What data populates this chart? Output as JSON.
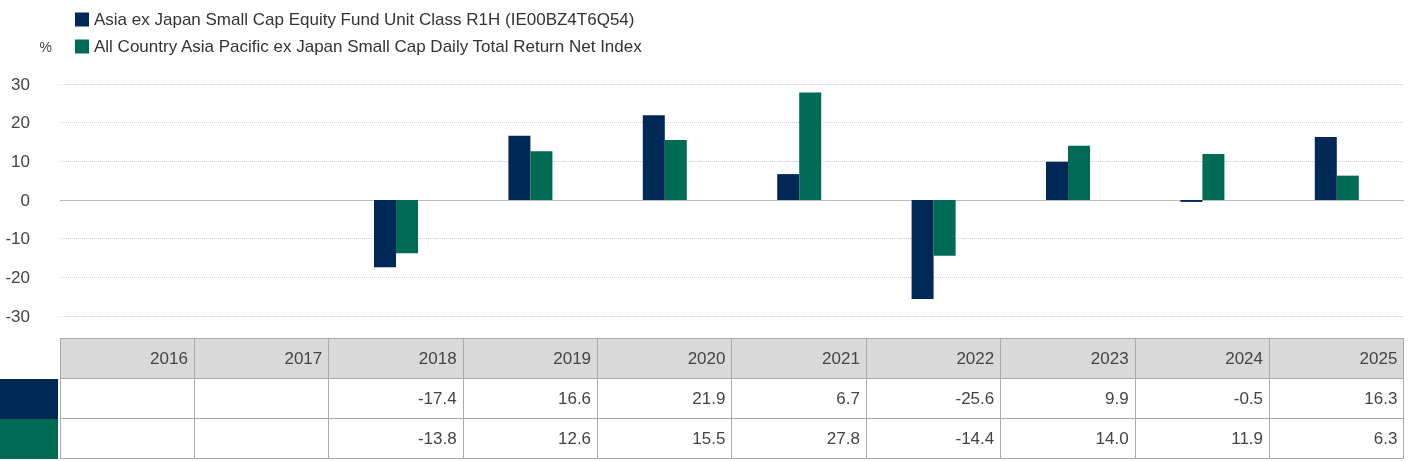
{
  "chart_data": {
    "type": "bar",
    "ylabel": "%",
    "categories": [
      "2016",
      "2017",
      "2018",
      "2019",
      "2020",
      "2021",
      "2022",
      "2023",
      "2024",
      "2025"
    ],
    "series": [
      {
        "name": "Asia ex Japan Small Cap Equity Fund Unit Class R1H (IE00BZ4T6Q54)",
        "color": "#002856",
        "values": [
          null,
          null,
          -17.4,
          16.6,
          21.9,
          6.7,
          -25.6,
          9.9,
          -0.5,
          16.3
        ],
        "value_labels": [
          null,
          null,
          "-17.4",
          "16.6",
          "21.9",
          "6.7",
          "-25.6",
          "9.9",
          "-0.5",
          "16.3"
        ]
      },
      {
        "name": "All Country Asia Pacific ex Japan Small Cap Daily Total Return Net Index",
        "color": "#006b54",
        "values": [
          null,
          null,
          -13.8,
          12.6,
          15.5,
          27.8,
          -14.4,
          14.0,
          11.9,
          6.3
        ],
        "value_labels": [
          null,
          null,
          "-13.8",
          "12.6",
          "15.5",
          "27.8",
          "-14.4",
          "14.0",
          "11.9",
          "6.3"
        ]
      }
    ],
    "ylim": [
      -30,
      30
    ],
    "yticks": [
      -30,
      -20,
      -10,
      0,
      10,
      20,
      30
    ],
    "grid": "y",
    "legend": "top left"
  }
}
